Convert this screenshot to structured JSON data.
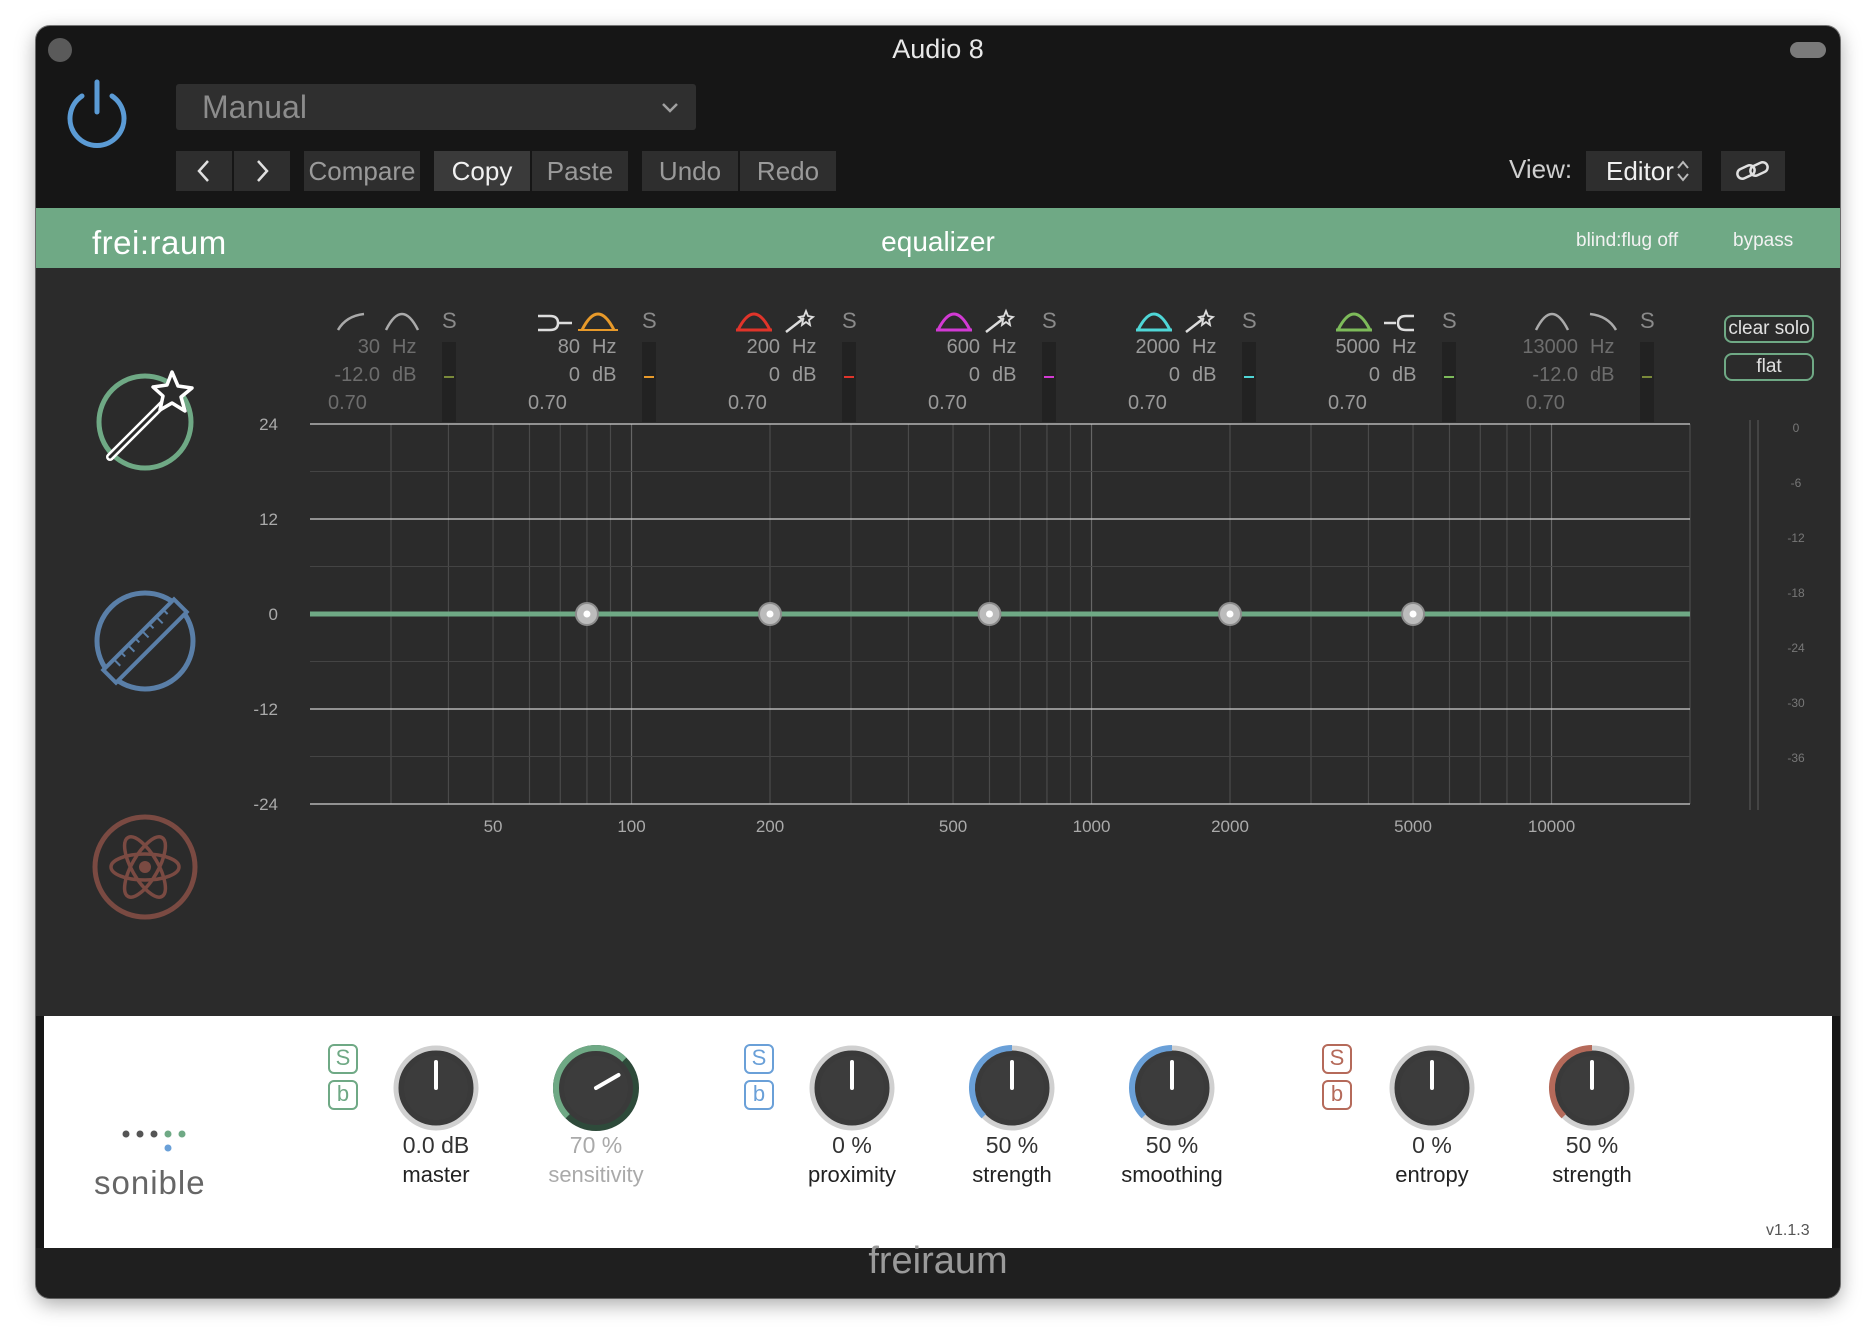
{
  "window": {
    "title": "Audio 8"
  },
  "host": {
    "preset": "Manual",
    "compare": "Compare",
    "copy": "Copy",
    "paste": "Paste",
    "undo": "Undo",
    "redo": "Redo",
    "view_label": "View:",
    "view_value": "Editor"
  },
  "plugin": {
    "brand": "frei:raum",
    "section": "equalizer",
    "blindflug": "blind:flug off",
    "bypass": "bypass",
    "clear_solo": "clear solo",
    "flat": "flat"
  },
  "bands": [
    {
      "freq": "30",
      "gain": "-12.0",
      "q": "0.70",
      "color": "#aaaaaa",
      "dim": true
    },
    {
      "freq": "80",
      "gain": "0",
      "q": "0.70",
      "color": "#e89a2a",
      "dim": false
    },
    {
      "freq": "200",
      "gain": "0",
      "q": "0.70",
      "color": "#e0342a",
      "dim": false
    },
    {
      "freq": "600",
      "gain": "0",
      "q": "0.70",
      "color": "#d23ad4",
      "dim": false
    },
    {
      "freq": "2000",
      "gain": "0",
      "q": "0.70",
      "color": "#4fd6d6",
      "dim": false
    },
    {
      "freq": "5000",
      "gain": "0",
      "q": "0.70",
      "color": "#7dbb5a",
      "dim": false
    },
    {
      "freq": "13000",
      "gain": "-12.0",
      "q": "0.70",
      "color": "#aaaaaa",
      "dim": true
    }
  ],
  "units": {
    "hz": "Hz",
    "db": "dB",
    "solo": "S"
  },
  "graph": {
    "y_ticks": [
      "24",
      "12",
      "0",
      "-12",
      "-24"
    ],
    "x_ticks": [
      "50",
      "100",
      "200",
      "500",
      "1000",
      "2000",
      "5000",
      "10000"
    ],
    "meter_ticks": [
      "0",
      "-6",
      "-12",
      "-18",
      "-24",
      "-30",
      "-36"
    ],
    "curve_color": "#6fa985",
    "node_freqs": [
      80,
      200,
      600,
      2000,
      5000
    ],
    "node_gain": 0
  },
  "controls": {
    "master": {
      "value": "0.0 dB",
      "label": "master"
    },
    "sensitivity": {
      "value": "70 %",
      "label": "sensitivity"
    },
    "proximity": {
      "value": "0 %",
      "label": "proximity"
    },
    "strength1": {
      "value": "50 %",
      "label": "strength"
    },
    "smoothing": {
      "value": "50 %",
      "label": "smoothing"
    },
    "entropy": {
      "value": "0 %",
      "label": "entropy"
    },
    "strength2": {
      "value": "50 %",
      "label": "strength"
    },
    "solo_letter": "S",
    "bypass_letter": "b",
    "colors": {
      "green": "#6fa985",
      "blue": "#6aa0d8",
      "red": "#b56a5a"
    }
  },
  "brand_footer": {
    "sonible": "sonible",
    "version": "v1.1.3",
    "name": "freiraum"
  }
}
